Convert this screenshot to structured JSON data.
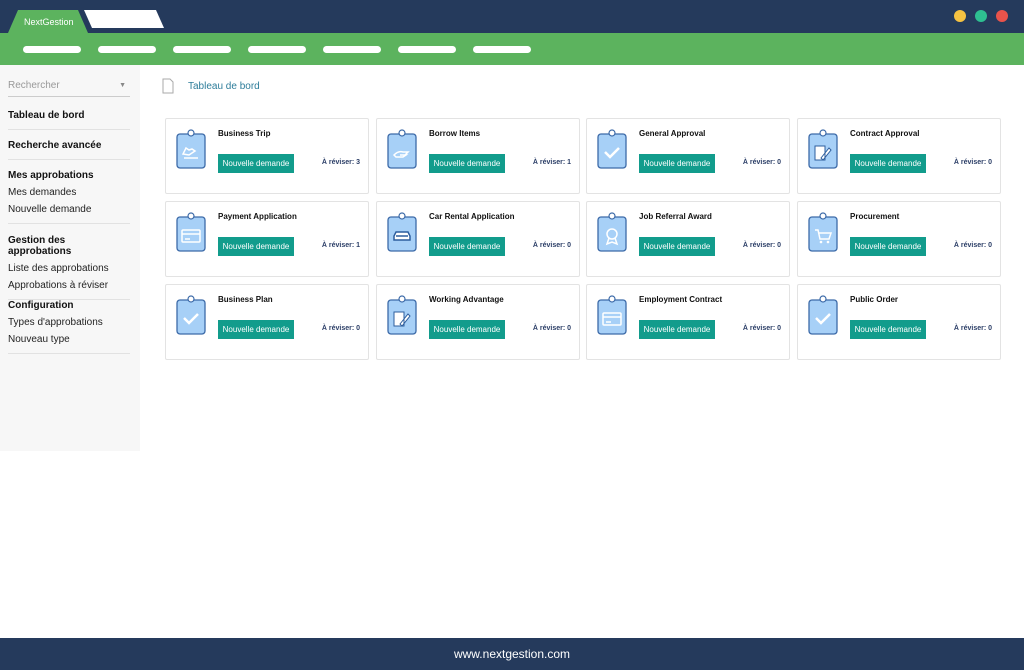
{
  "app": {
    "tab_title": "NextGestion",
    "window_dots": [
      "#f5c242",
      "#2ebf91",
      "#e9534b"
    ]
  },
  "sidebar": {
    "search_placeholder": "Rechercher",
    "sections": [
      {
        "heading": "Tableau de bord",
        "items": []
      },
      {
        "heading": "Recherche avancée",
        "items": []
      },
      {
        "heading": "Mes approbations",
        "items": [
          "Mes demandes",
          "Nouvelle demande"
        ]
      },
      {
        "heading": "Gestion des approbations",
        "items": [
          "Liste des approbations",
          "Approbations à réviser"
        ]
      },
      {
        "heading": "Configuration",
        "items": [
          "Types d'approbations",
          "Nouveau type"
        ]
      }
    ]
  },
  "breadcrumb": "Tableau de bord",
  "cards": [
    {
      "title": "Business Trip",
      "icon": "plane",
      "button": "Nouvelle demande",
      "review": "À réviser: 3"
    },
    {
      "title": "Borrow Items",
      "icon": "hand",
      "button": "Nouvelle demande",
      "review": "À réviser: 1"
    },
    {
      "title": "General Approval",
      "icon": "check",
      "button": "Nouvelle demande",
      "review": "À réviser: 0"
    },
    {
      "title": "Contract Approval",
      "icon": "pen",
      "button": "Nouvelle demande",
      "review": "À réviser: 0"
    },
    {
      "title": "Payment Application",
      "icon": "card",
      "button": "Nouvelle demande",
      "review": "À réviser: 1"
    },
    {
      "title": "Car Rental Application",
      "icon": "car",
      "button": "Nouvelle demande",
      "review": "À réviser: 0"
    },
    {
      "title": "Job Referral Award",
      "icon": "award",
      "button": "Nouvelle demande",
      "review": "À réviser: 0"
    },
    {
      "title": "Procurement",
      "icon": "cart",
      "button": "Nouvelle demande",
      "review": "À réviser: 0"
    },
    {
      "title": "Business Plan",
      "icon": "check",
      "button": "Nouvelle demande",
      "review": "À réviser: 0"
    },
    {
      "title": "Working Advantage",
      "icon": "pen",
      "button": "Nouvelle demande",
      "review": "À réviser: 0"
    },
    {
      "title": "Employment Contract",
      "icon": "card",
      "button": "Nouvelle demande",
      "review": "À réviser: 0"
    },
    {
      "title": "Public Order",
      "icon": "check",
      "button": "Nouvelle demande",
      "review": "À réviser: 0"
    }
  ],
  "footer": "www.nextgestion.com"
}
